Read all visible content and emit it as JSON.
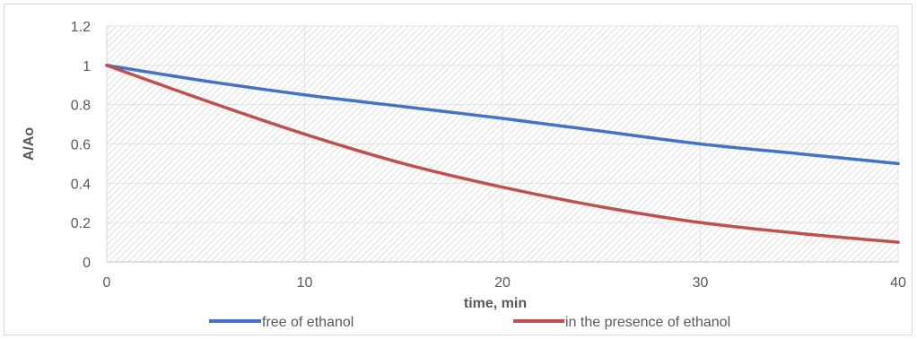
{
  "chart_data": {
    "type": "line",
    "xlabel": "time, min",
    "ylabel": "A/Ao",
    "xlim": [
      0,
      40
    ],
    "ylim": [
      0,
      1.2
    ],
    "x_ticks": [
      "0",
      "10",
      "20",
      "30",
      "40"
    ],
    "y_ticks": [
      "0",
      "0.2",
      "0.4",
      "0.6",
      "0.8",
      "1",
      "1.2"
    ],
    "grid": true,
    "plot_background": "diagonal hatch",
    "legend_position": "bottom",
    "series": [
      {
        "name": "free of ethanol",
        "color": "#4472c4",
        "x": [
          0,
          5,
          10,
          15,
          20,
          25,
          30,
          35,
          40
        ],
        "y": [
          1.0,
          0.92,
          0.85,
          0.79,
          0.73,
          0.665,
          0.6,
          0.55,
          0.5
        ]
      },
      {
        "name": "in the presence of ethanol",
        "color": "#c0504d",
        "x": [
          0,
          5,
          10,
          15,
          20,
          25,
          30,
          35,
          40
        ],
        "y": [
          1.0,
          0.82,
          0.65,
          0.5,
          0.38,
          0.28,
          0.2,
          0.145,
          0.1
        ]
      }
    ]
  }
}
